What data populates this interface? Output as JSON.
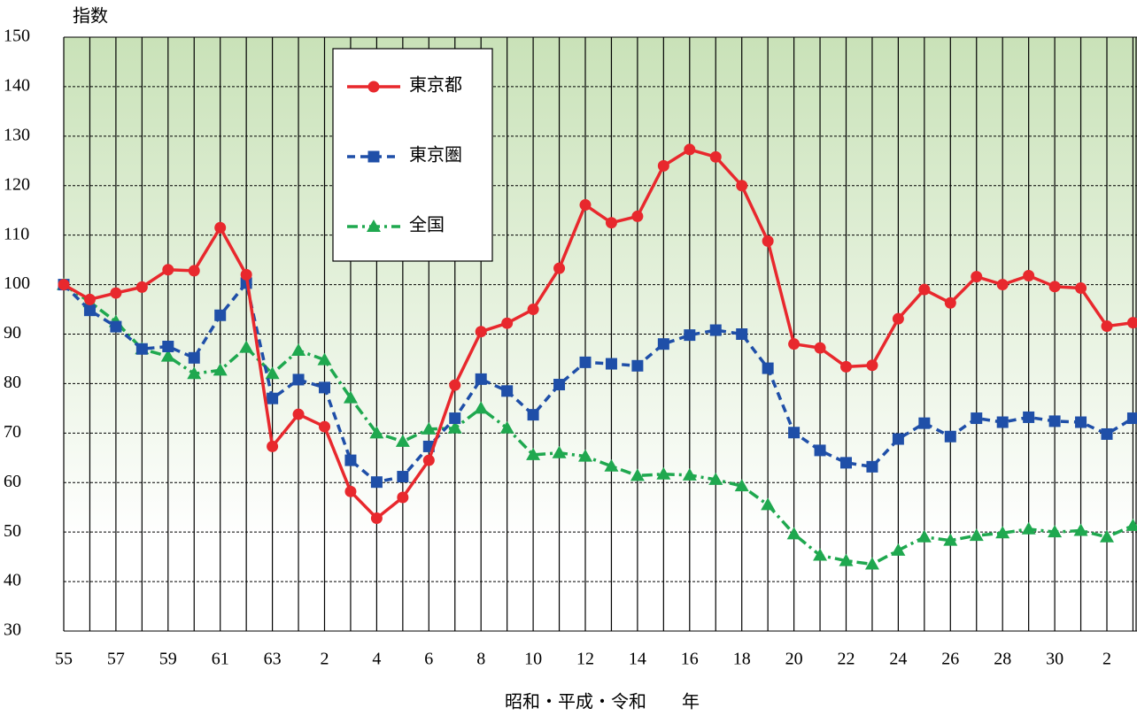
{
  "chart_data": {
    "type": "line",
    "y_label": "指数",
    "x_label": "昭和・平成・令和　　年",
    "categories": [
      "55",
      null,
      "57",
      null,
      "59",
      null,
      "61",
      null,
      "63",
      null,
      "2",
      null,
      "4",
      null,
      "6",
      null,
      "8",
      null,
      "10",
      null,
      "12",
      null,
      "14",
      null,
      "16",
      null,
      "18",
      null,
      "20",
      null,
      "22",
      null,
      "24",
      null,
      "26",
      null,
      "28",
      null,
      "30",
      null,
      "2",
      null
    ],
    "series": [
      {
        "name": "東京都",
        "color": "#e8282d",
        "marker": "circle",
        "line_style": "solid",
        "values": [
          100,
          97,
          98.3,
          99.5,
          103,
          102.8,
          111.5,
          102,
          67.3,
          73.8,
          71.3,
          58.2,
          52.8,
          57,
          64.5,
          79.7,
          90.5,
          92.2,
          95,
          103.3,
          116.1,
          112.5,
          113.8,
          124,
          127.3,
          125.8,
          120,
          108.8,
          88,
          87.2,
          83.4,
          83.7,
          93.1,
          99,
          96.3,
          101.6,
          100,
          101.8,
          99.6,
          99.3,
          91.6,
          92.3
        ]
      },
      {
        "name": "東京圏",
        "color": "#1f4fa8",
        "marker": "square",
        "line_style": "dashed",
        "values": [
          100,
          94.8,
          91.5,
          87,
          87.5,
          85.2,
          93.8,
          100.3,
          77,
          80.8,
          79.2,
          64.5,
          60.1,
          61.2,
          67.3,
          73,
          80.9,
          78.5,
          73.7,
          79.8,
          84.3,
          84,
          83.6,
          88,
          89.8,
          90.8,
          90,
          83.1,
          70.1,
          66.5,
          64,
          63.2,
          68.8,
          72,
          69.3,
          73,
          72.2,
          73.2,
          72.4,
          72.2,
          69.8,
          73
        ]
      },
      {
        "name": "全国",
        "color": "#1fa84f",
        "marker": "triangle",
        "line_style": "dashdot",
        "values": [
          100,
          96.5,
          92.5,
          87,
          85.5,
          82,
          82.7,
          87.3,
          82,
          86.7,
          84.8,
          77.1,
          70,
          68.3,
          70.8,
          71,
          75,
          71,
          65.6,
          66,
          65.3,
          63.3,
          61.4,
          61.7,
          61.5,
          60.6,
          59.3,
          55.5,
          49.6,
          45.3,
          44.2,
          43.5,
          46.3,
          49,
          48.3,
          49.3,
          49.8,
          50.6,
          50,
          50.3,
          49,
          51.3
        ]
      }
    ],
    "ylim": [
      30,
      150
    ],
    "yticks": [
      30,
      40,
      50,
      60,
      70,
      80,
      90,
      100,
      110,
      120,
      130,
      140,
      150
    ],
    "grid": true,
    "legend": "upper-left"
  }
}
